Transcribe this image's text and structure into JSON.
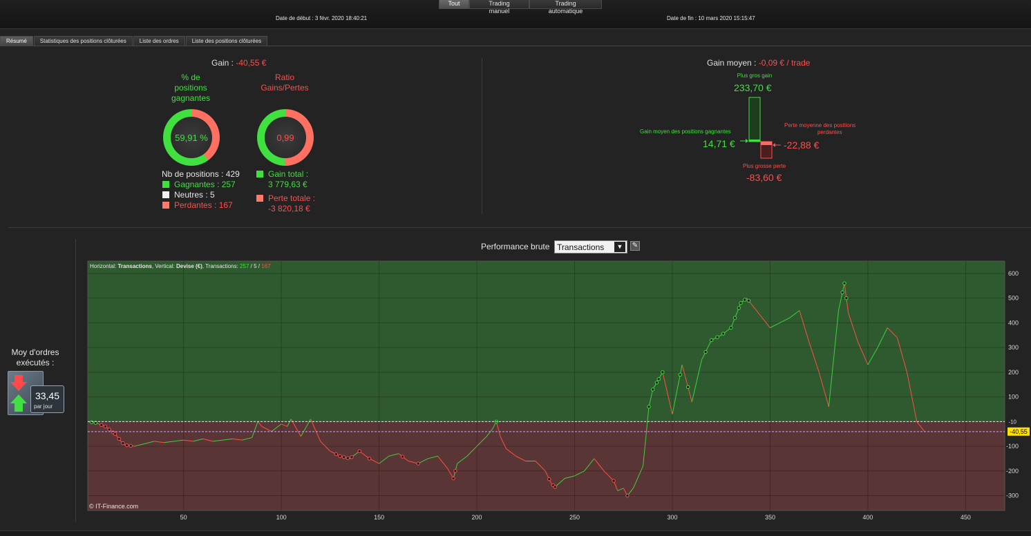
{
  "top_tabs": [
    {
      "label": "Tout",
      "active": true
    },
    {
      "label": "Trading manuel",
      "active": false
    },
    {
      "label": "Trading automatique",
      "active": false
    }
  ],
  "dates": {
    "start": "Date de début :  3 févr. 2020 18:40:21",
    "end": "Date de fin :  10 mars 2020 15:15:47"
  },
  "tabs": [
    {
      "label": "Résumé",
      "active": true
    },
    {
      "label": "Statistiques des positions clôturées",
      "active": false
    },
    {
      "label": "Liste des ordres",
      "active": false
    },
    {
      "label": "Liste des positions clôturées",
      "active": false
    }
  ],
  "summary": {
    "gain_label": "Gain :",
    "gain_value": "-40,55 €",
    "pct_title_l1": "% de",
    "pct_title_l2": "positions",
    "pct_title_l3": "gagnantes",
    "pct_value": "59,91 %",
    "pct_fraction": 0.5991,
    "ratio_title_l1": "Ratio",
    "ratio_title_l2": "Gains/Pertes",
    "ratio_value": "0,99",
    "ratio_fraction": 0.4975,
    "nb_positions": "Nb de positions : 429",
    "gagnantes": "Gagnantes : 257",
    "neutres": "Neutres : 5",
    "perdantes": "Perdantes : 167",
    "gain_total_label": "Gain total :",
    "gain_total_value": "3 779,63 €",
    "perte_totale_label": "Perte totale :",
    "perte_totale_value": "-3 820,18 €"
  },
  "gain_moyen": {
    "label": "Gain moyen :",
    "value": "-0,09 € / trade",
    "plus_gros_gain_label": "Plus gros gain",
    "plus_gros_gain_value": "233,70 €",
    "gain_moyen_pos_label": "Gain moyen des positions gagnantes",
    "gain_moyen_pos_value": "14,71 €",
    "perte_moyenne_label_l1": "Perte moyenne des positions",
    "perte_moyenne_label_l2": "perdantes",
    "perte_moyenne_value": "-22,88 €",
    "plus_grosse_perte_label": "Plus grosse perte",
    "plus_grosse_perte_value": "-83,60 €"
  },
  "orders": {
    "label_l1": "Moy d'ordres",
    "label_l2": "exécutés :",
    "value": "33,45",
    "unit": "par jour"
  },
  "perf": {
    "label": "Performance brute",
    "select_value": "Transactions",
    "chart_header_prefix": "Horizontal:",
    "chart_header_h": "Transactions",
    "chart_header_mid": ", Vertical:",
    "chart_header_v": "Devise (€)",
    "chart_header_tr": ", Transactions:",
    "chart_header_g": "257",
    "chart_header_sep1": " / ",
    "chart_header_n": "5",
    "chart_header_sep2": " / ",
    "chart_header_p": "167",
    "watermark": "© IT-Finance.com",
    "current_label": "-40,55",
    "zero_label": "-10"
  },
  "colors": {
    "green": "#40e040",
    "red": "#ff4e4e",
    "pos_bg": "#2f5a2f",
    "neg_bg": "#5a3535"
  },
  "chart_data": {
    "type": "line",
    "x_ticks": [
      50,
      100,
      150,
      200,
      250,
      300,
      350,
      400,
      450
    ],
    "y_ticks": [
      600,
      500,
      400,
      300,
      200,
      100,
      -100,
      -200,
      -300
    ],
    "xlim": [
      1,
      470
    ],
    "ylim": [
      -360,
      650
    ],
    "final_value": -40.55,
    "series": [
      {
        "x": [
          1,
          5,
          10,
          15,
          18,
          20,
          25,
          30,
          35,
          40,
          45,
          50,
          55,
          60,
          65,
          70,
          75,
          80,
          85,
          88,
          90,
          95,
          100,
          103,
          105,
          110,
          115,
          120,
          125,
          130,
          135,
          140,
          145,
          150,
          155,
          160,
          165,
          170,
          175,
          180,
          185,
          188,
          190,
          195,
          200,
          205,
          208,
          210,
          212,
          215,
          220,
          225,
          230,
          235,
          238,
          240,
          245,
          250,
          255,
          260,
          265,
          270,
          272,
          275,
          277,
          280,
          285,
          288,
          290,
          295,
          300,
          305,
          310,
          315,
          320,
          325,
          330,
          335,
          338,
          340,
          345,
          350,
          355,
          360,
          365,
          370,
          375,
          380,
          385,
          388,
          390,
          395,
          400,
          405,
          410,
          415,
          420,
          425,
          429
        ],
        "y": [
          0,
          -5,
          -20,
          -50,
          -80,
          -95,
          -100,
          -90,
          -80,
          -85,
          -80,
          -75,
          -80,
          -70,
          -80,
          -75,
          -70,
          -75,
          -65,
          0,
          -20,
          -40,
          -10,
          -20,
          10,
          -60,
          10,
          -80,
          -120,
          -140,
          -150,
          -120,
          -150,
          -170,
          -140,
          -130,
          -160,
          -170,
          -150,
          -140,
          -190,
          -230,
          -170,
          -140,
          -100,
          -60,
          -30,
          0,
          -60,
          -110,
          -140,
          -160,
          -160,
          -200,
          -250,
          -265,
          -230,
          -220,
          -200,
          -150,
          -200,
          -240,
          -280,
          -270,
          -300,
          -270,
          -180,
          60,
          130,
          200,
          30,
          230,
          80,
          250,
          330,
          350,
          380,
          480,
          500,
          480,
          430,
          380,
          400,
          420,
          450,
          320,
          200,
          60,
          450,
          560,
          440,
          320,
          230,
          300,
          380,
          340,
          200,
          0,
          -40.55
        ]
      }
    ],
    "markers_up_x": [
      3,
      5,
      210,
      288,
      290,
      292,
      293,
      295,
      304,
      308,
      317,
      320,
      323,
      326,
      330,
      332,
      334,
      335,
      337,
      339,
      387,
      388,
      389
    ],
    "markers_down_x": [
      8,
      10,
      12,
      14,
      15,
      17,
      19,
      21,
      23,
      128,
      130,
      132,
      134,
      136,
      140,
      145,
      162,
      170,
      188,
      189,
      237,
      239,
      240,
      270,
      277
    ]
  }
}
